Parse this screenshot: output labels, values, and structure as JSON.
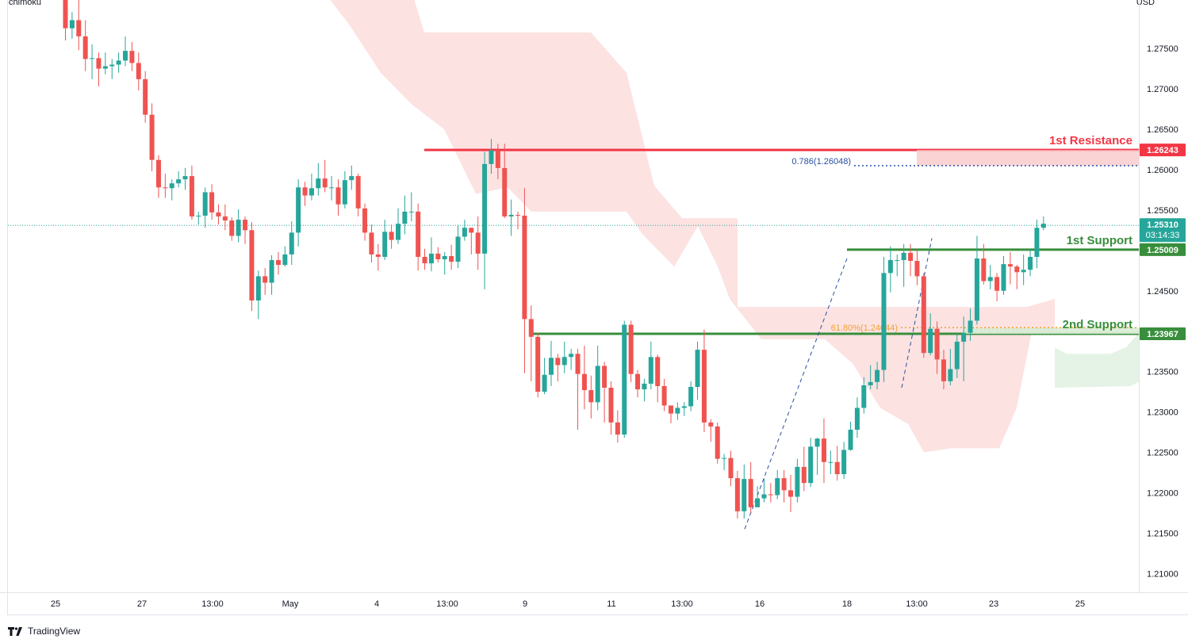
{
  "indicator_label": "Ichimoku",
  "currency": "USD",
  "brand": "TradingView",
  "colors": {
    "up": "#26a69a",
    "down": "#ef5350",
    "resistance": "#f23645",
    "support": "#388e3c",
    "fib_786": "#2a4fa0",
    "fib_618": "#f0a030",
    "cloud_bear": "#fde2e2",
    "cloud_bull": "#e4f3e6",
    "last_price": "#26a69a"
  },
  "chart_data": {
    "type": "candlestick",
    "symbol_quote": "USD",
    "ylim": [
      1.2085,
      1.281
    ],
    "y_ticks": [
      "1.27500",
      "1.27000",
      "1.26500",
      "1.26000",
      "1.25500",
      "1.25000",
      "1.24500",
      "1.24000",
      "1.23500",
      "1.23000",
      "1.22500",
      "1.22000",
      "1.21500",
      "1.21000"
    ],
    "x_ticks": [
      "25",
      "27",
      "13:00",
      "May",
      "4",
      "13:00",
      "9",
      "11",
      "13:00",
      "16",
      "18",
      "13:00",
      "23",
      "25"
    ],
    "levels": [
      {
        "name": "1st Resistance",
        "value": 1.26243,
        "badge": "1.26243",
        "color": "#f23645"
      },
      {
        "name": "1st Support",
        "value": 1.25009,
        "badge": "1.25009",
        "color": "#388e3c"
      },
      {
        "name": "2nd Support",
        "value": 1.23967,
        "badge": "1.23967",
        "color": "#388e3c"
      }
    ],
    "fib_levels": [
      {
        "label": "0.786(1.26048)",
        "value": 1.26048
      },
      {
        "label": "61.80%(1.24044)",
        "value": 1.24044
      }
    ],
    "last_price": {
      "value": 1.2531,
      "label": "1.25310",
      "countdown": "03:14:33"
    },
    "candles": [
      [
        1.2818,
        1.2775,
        1.2825,
        1.276
      ],
      [
        1.2775,
        1.2785,
        1.2795,
        1.2762
      ],
      [
        1.2785,
        1.2765,
        1.2815,
        1.2748
      ],
      [
        1.2765,
        1.2737,
        1.2785,
        1.2722
      ],
      [
        1.2737,
        1.2738,
        1.2755,
        1.2712
      ],
      [
        1.2738,
        1.2725,
        1.2745,
        1.2703
      ],
      [
        1.2725,
        1.2728,
        1.2745,
        1.2718
      ],
      [
        1.2728,
        1.273,
        1.2737,
        1.2712
      ],
      [
        1.273,
        1.2735,
        1.2745,
        1.272
      ],
      [
        1.2735,
        1.2747,
        1.2765,
        1.2728
      ],
      [
        1.2747,
        1.2732,
        1.2758,
        1.2722
      ],
      [
        1.2732,
        1.2712,
        1.2745,
        1.2698
      ],
      [
        1.2712,
        1.2668,
        1.2722,
        1.2658
      ],
      [
        1.2668,
        1.2612,
        1.2682,
        1.2598
      ],
      [
        1.2612,
        1.2578,
        1.2618,
        1.2565
      ],
      [
        1.2578,
        1.2577,
        1.2595,
        1.2565
      ],
      [
        1.2577,
        1.2583,
        1.2588,
        1.2562
      ],
      [
        1.2583,
        1.2588,
        1.2598,
        1.2578
      ],
      [
        1.2588,
        1.2592,
        1.2602,
        1.2575
      ],
      [
        1.2592,
        1.2542,
        1.2605,
        1.2538
      ],
      [
        1.2542,
        1.2543,
        1.2548,
        1.2532
      ],
      [
        1.2543,
        1.2572,
        1.2578,
        1.2528
      ],
      [
        1.2572,
        1.2547,
        1.2582,
        1.2538
      ],
      [
        1.2547,
        1.2542,
        1.2557,
        1.2532
      ],
      [
        1.2542,
        1.2537,
        1.2557,
        1.2525
      ],
      [
        1.2537,
        1.2518,
        1.2541,
        1.2512
      ],
      [
        1.2518,
        1.2538,
        1.2551,
        1.251
      ],
      [
        1.2538,
        1.2525,
        1.2542,
        1.2508
      ],
      [
        1.2525,
        1.2438,
        1.2535,
        1.2425
      ],
      [
        1.2438,
        1.2468,
        1.2475,
        1.2415
      ],
      [
        1.2468,
        1.246,
        1.2478,
        1.2445
      ],
      [
        1.246,
        1.2488,
        1.2494,
        1.2445
      ],
      [
        1.2488,
        1.2482,
        1.2498,
        1.247
      ],
      [
        1.2482,
        1.2495,
        1.2505,
        1.248
      ],
      [
        1.2495,
        1.2522,
        1.2536,
        1.2482
      ],
      [
        1.2522,
        1.2578,
        1.2588,
        1.2505
      ],
      [
        1.2578,
        1.2568,
        1.2585,
        1.2555
      ],
      [
        1.2568,
        1.2577,
        1.2595,
        1.2562
      ],
      [
        1.2577,
        1.2589,
        1.2608,
        1.2568
      ],
      [
        1.2589,
        1.2578,
        1.2612,
        1.2572
      ],
      [
        1.2578,
        1.2578,
        1.2592,
        1.2562
      ],
      [
        1.2578,
        1.2557,
        1.2588,
        1.2543
      ],
      [
        1.2557,
        1.2587,
        1.2598,
        1.2552
      ],
      [
        1.2587,
        1.2592,
        1.2605,
        1.2575
      ],
      [
        1.2592,
        1.2552,
        1.2595,
        1.2542
      ],
      [
        1.2552,
        1.2522,
        1.2558,
        1.2512
      ],
      [
        1.2522,
        1.2495,
        1.2532,
        1.2485
      ],
      [
        1.2495,
        1.2492,
        1.2508,
        1.2475
      ],
      [
        1.2492,
        1.2523,
        1.2538,
        1.2488
      ],
      [
        1.2523,
        1.2513,
        1.2532,
        1.2502
      ],
      [
        1.2513,
        1.2533,
        1.2552,
        1.2508
      ],
      [
        1.2533,
        1.2548,
        1.2568,
        1.252
      ],
      [
        1.2548,
        1.2548,
        1.2572,
        1.2536
      ],
      [
        1.2548,
        1.2492,
        1.2558,
        1.2475
      ],
      [
        1.2492,
        1.2484,
        1.2502,
        1.2476
      ],
      [
        1.2484,
        1.2496,
        1.2516,
        1.2474
      ],
      [
        1.2496,
        1.2489,
        1.2504,
        1.2485
      ],
      [
        1.2489,
        1.2493,
        1.2498,
        1.247
      ],
      [
        1.2493,
        1.2486,
        1.2507,
        1.2476
      ],
      [
        1.2486,
        1.2517,
        1.2532,
        1.2478
      ],
      [
        1.2517,
        1.2528,
        1.2538,
        1.2512
      ],
      [
        1.2528,
        1.2522,
        1.2528,
        1.2495
      ],
      [
        1.2522,
        1.2496,
        1.2542,
        1.2476
      ],
      [
        1.2496,
        1.2607,
        1.2622,
        1.2452
      ],
      [
        1.2607,
        1.2624,
        1.2638,
        1.2595
      ],
      [
        1.2624,
        1.2602,
        1.2632,
        1.2588
      ],
      [
        1.2602,
        1.2542,
        1.2632,
        1.254
      ],
      [
        1.2542,
        1.2544,
        1.2563,
        1.2518
      ],
      [
        1.2544,
        1.2543,
        1.2548,
        1.2526
      ],
      [
        1.2543,
        1.2415,
        1.2577,
        1.2348
      ],
      [
        1.2415,
        1.2393,
        1.2432,
        1.2338
      ],
      [
        1.2393,
        1.2325,
        1.2398,
        1.2318
      ],
      [
        1.2325,
        1.2346,
        1.2367,
        1.2322
      ],
      [
        1.2346,
        1.2367,
        1.2388,
        1.2332
      ],
      [
        1.2367,
        1.2358,
        1.2372,
        1.2338
      ],
      [
        1.2358,
        1.2368,
        1.2387,
        1.2348
      ],
      [
        1.2368,
        1.2372,
        1.2378,
        1.2352
      ],
      [
        1.2372,
        1.2347,
        1.2378,
        1.2278
      ],
      [
        1.2347,
        1.2327,
        1.2382,
        1.2303
      ],
      [
        1.2327,
        1.2312,
        1.2345,
        1.2292
      ],
      [
        1.2312,
        1.2357,
        1.2382,
        1.2302
      ],
      [
        1.2357,
        1.233,
        1.2362,
        1.2287
      ],
      [
        1.233,
        1.2287,
        1.2338,
        1.2272
      ],
      [
        1.2287,
        1.2272,
        1.2302,
        1.2262
      ],
      [
        1.2272,
        1.2408,
        1.2413,
        1.2268
      ],
      [
        1.2408,
        1.2347,
        1.2413,
        1.2337
      ],
      [
        1.2347,
        1.2328,
        1.2352,
        1.2318
      ],
      [
        1.2328,
        1.2335,
        1.2341,
        1.2313
      ],
      [
        1.2335,
        1.2368,
        1.2387,
        1.2328
      ],
      [
        1.2368,
        1.2332,
        1.2371,
        1.2312
      ],
      [
        1.2332,
        1.2308,
        1.2341,
        1.2301
      ],
      [
        1.2308,
        1.2298,
        1.2307,
        1.2286
      ],
      [
        1.2298,
        1.2305,
        1.2312,
        1.229
      ],
      [
        1.2305,
        1.2307,
        1.2312,
        1.2295
      ],
      [
        1.2307,
        1.2331,
        1.2338,
        1.2301
      ],
      [
        1.2331,
        1.2377,
        1.2387,
        1.2315
      ],
      [
        1.2377,
        1.2287,
        1.2402,
        1.2275
      ],
      [
        1.2287,
        1.2282,
        1.2291,
        1.2263
      ],
      [
        1.2282,
        1.2242,
        1.2287,
        1.2236
      ],
      [
        1.2242,
        1.2243,
        1.2248,
        1.2228
      ],
      [
        1.2243,
        1.2218,
        1.2252,
        1.2208
      ],
      [
        1.2218,
        1.2177,
        1.2227,
        1.2168
      ],
      [
        1.2177,
        1.2217,
        1.2235,
        1.2168
      ],
      [
        1.2217,
        1.2182,
        1.2238,
        1.2175
      ],
      [
        1.2182,
        1.2193,
        1.2208,
        1.2183
      ],
      [
        1.2193,
        1.2198,
        1.2218,
        1.2188
      ],
      [
        1.2198,
        1.2197,
        1.2212,
        1.2188
      ],
      [
        1.2197,
        1.2218,
        1.2228,
        1.2192
      ],
      [
        1.2218,
        1.2203,
        1.2228,
        1.2188
      ],
      [
        1.2203,
        1.2195,
        1.2222,
        1.2176
      ],
      [
        1.2195,
        1.2232,
        1.2242,
        1.2188
      ],
      [
        1.2232,
        1.2212,
        1.2257,
        1.2202
      ],
      [
        1.2212,
        1.2257,
        1.2268,
        1.2207
      ],
      [
        1.2257,
        1.2267,
        1.2268,
        1.2222
      ],
      [
        1.2267,
        1.2238,
        1.2292,
        1.2212
      ],
      [
        1.2238,
        1.2238,
        1.2252,
        1.2223
      ],
      [
        1.2238,
        1.2223,
        1.2258,
        1.2215
      ],
      [
        1.2223,
        1.2253,
        1.2263,
        1.2217
      ],
      [
        1.2253,
        1.2278,
        1.2288,
        1.2252
      ],
      [
        1.2278,
        1.2305,
        1.2318,
        1.2268
      ],
      [
        1.2305,
        1.2333,
        1.2343,
        1.2298
      ],
      [
        1.2333,
        1.2337,
        1.2358,
        1.2328
      ],
      [
        1.2337,
        1.2352,
        1.2362,
        1.2328
      ],
      [
        1.2352,
        1.2472,
        1.2492,
        1.2337
      ],
      [
        1.2472,
        1.2488,
        1.2505,
        1.2448
      ],
      [
        1.2488,
        1.2488,
        1.2495,
        1.2468
      ],
      [
        1.2488,
        1.2497,
        1.2508,
        1.2455
      ],
      [
        1.2497,
        1.2487,
        1.2508,
        1.2468
      ],
      [
        1.2487,
        1.2468,
        1.2502,
        1.2457
      ],
      [
        1.2468,
        1.2373,
        1.2472,
        1.2367
      ],
      [
        1.2373,
        1.2403,
        1.2422,
        1.237
      ],
      [
        1.2403,
        1.2365,
        1.2412,
        1.2347
      ],
      [
        1.2365,
        1.2338,
        1.2377,
        1.2328
      ],
      [
        1.2338,
        1.2353,
        1.2378,
        1.2333
      ],
      [
        1.2353,
        1.2387,
        1.2397,
        1.2342
      ],
      [
        1.2387,
        1.2398,
        1.2418,
        1.2338
      ],
      [
        1.2398,
        1.2413,
        1.2428,
        1.2388
      ],
      [
        1.2413,
        1.249,
        1.2518,
        1.2408
      ],
      [
        1.249,
        1.2462,
        1.2508,
        1.2458
      ],
      [
        1.2462,
        1.2467,
        1.2482,
        1.2452
      ],
      [
        1.2467,
        1.245,
        1.2472,
        1.2437
      ],
      [
        1.245,
        1.2483,
        1.2493,
        1.2445
      ],
      [
        1.2483,
        1.248,
        1.2498,
        1.2458
      ],
      [
        1.248,
        1.2473,
        1.2482,
        1.2452
      ],
      [
        1.2473,
        1.2476,
        1.2495,
        1.2457
      ],
      [
        1.2476,
        1.2492,
        1.2502,
        1.2468
      ],
      [
        1.2492,
        1.2528,
        1.2538,
        1.2478
      ],
      [
        1.2528,
        1.2533,
        1.2542,
        1.2525
      ]
    ],
    "annotations": [
      "1st Resistance",
      "1st Support",
      "2nd Support",
      "0.786(1.26048)",
      "61.80%(1.24044)"
    ]
  }
}
